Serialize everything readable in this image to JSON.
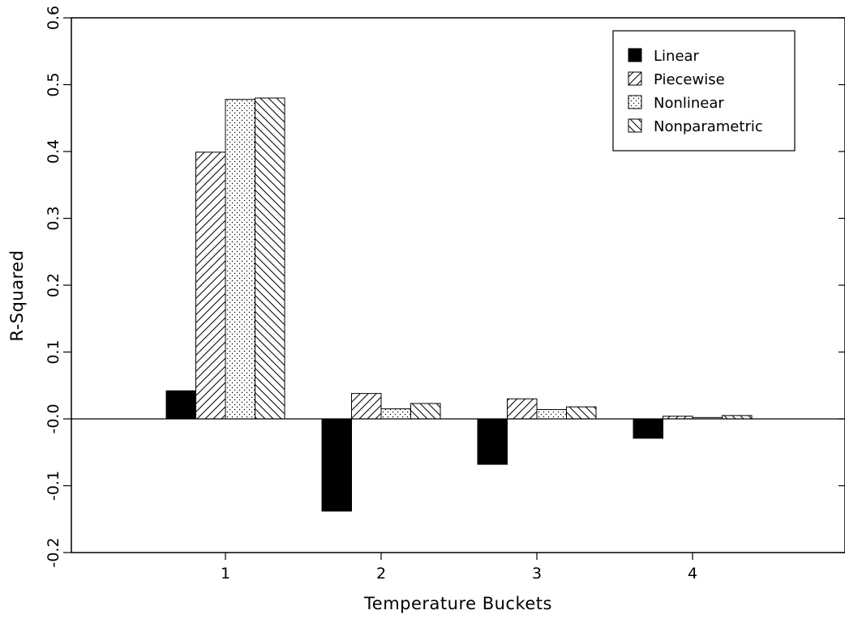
{
  "chart_data": {
    "type": "bar",
    "xlabel": "Temperature Buckets",
    "ylabel": "R-Squared",
    "categories": [
      "1",
      "2",
      "3",
      "4"
    ],
    "ylim": [
      -0.2,
      0.6
    ],
    "yticks": [
      "-0.2",
      "-0.1",
      "-0.0",
      "0.1",
      "0.2",
      "0.3",
      "0.4",
      "0.5",
      "0.6"
    ],
    "ytick_values": [
      -0.2,
      -0.1,
      0.0,
      0.1,
      0.2,
      0.3,
      0.4,
      0.5,
      0.6
    ],
    "grid": false,
    "legend_position": "top-right",
    "series": [
      {
        "name": "Linear",
        "pattern": "solid",
        "values": [
          0.042,
          -0.138,
          -0.068,
          -0.029
        ]
      },
      {
        "name": "Piecewise",
        "pattern": "forward-hatch",
        "values": [
          0.399,
          0.038,
          0.03,
          0.004
        ]
      },
      {
        "name": "Nonlinear",
        "pattern": "dots",
        "values": [
          0.478,
          0.015,
          0.014,
          0.002
        ]
      },
      {
        "name": "Nonparametric",
        "pattern": "back-hatch",
        "values": [
          0.48,
          0.023,
          0.018,
          0.005
        ]
      }
    ],
    "colors": {
      "ink": "#000000",
      "background": "#ffffff"
    }
  }
}
